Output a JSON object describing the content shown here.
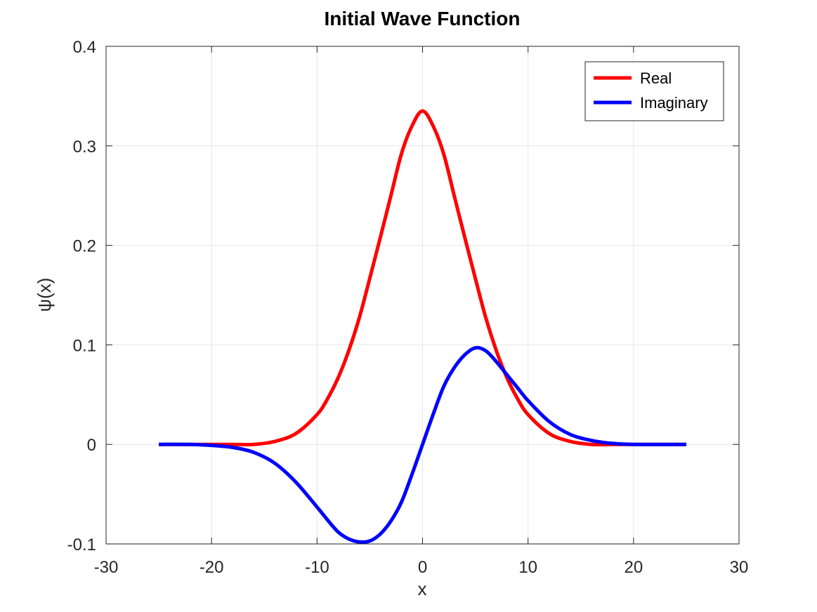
{
  "chart_data": {
    "type": "line",
    "title": "Initial Wave Function",
    "xlabel": "x",
    "ylabel": "ψ(x)",
    "xlim": [
      -30,
      30
    ],
    "ylim": [
      -0.1,
      0.4
    ],
    "xticks": [
      -30,
      -20,
      -10,
      0,
      10,
      20,
      30
    ],
    "xtick_labels": [
      "-30",
      "-20",
      "-10",
      "0",
      "10",
      "20",
      "30"
    ],
    "yticks": [
      -0.1,
      0,
      0.1,
      0.2,
      0.3,
      0.4
    ],
    "ytick_labels": [
      "-0.1",
      "0",
      "0.1",
      "0.2",
      "0.3",
      "0.4"
    ],
    "grid": true,
    "legend_position": "top-right",
    "x": [
      -25,
      -22,
      -20,
      -18,
      -16,
      -14,
      -12,
      -10,
      -9,
      -8,
      -7,
      -6,
      -5,
      -4,
      -3,
      -2,
      -1,
      0,
      1,
      2,
      3,
      4,
      5,
      6,
      7,
      8,
      9,
      10,
      12,
      14,
      16,
      18,
      20,
      22,
      25
    ],
    "series": [
      {
        "name": "Real",
        "color": "#ff0000",
        "values": [
          0.0,
          0.0,
          0.0,
          0.0,
          0.0,
          0.003,
          0.011,
          0.03,
          0.046,
          0.067,
          0.094,
          0.127,
          0.167,
          0.208,
          0.25,
          0.292,
          0.32,
          0.335,
          0.32,
          0.292,
          0.25,
          0.208,
          0.167,
          0.127,
          0.094,
          0.067,
          0.046,
          0.03,
          0.011,
          0.003,
          0.0,
          0.0,
          0.0,
          0.0,
          0.0
        ]
      },
      {
        "name": "Imaginary",
        "color": "#0000ff",
        "values": [
          0.0,
          0.0,
          -0.001,
          -0.003,
          -0.008,
          -0.019,
          -0.038,
          -0.063,
          -0.076,
          -0.088,
          -0.095,
          -0.098,
          -0.097,
          -0.09,
          -0.077,
          -0.058,
          -0.03,
          0.0,
          0.03,
          0.058,
          0.077,
          0.09,
          0.097,
          0.094,
          0.083,
          0.07,
          0.057,
          0.044,
          0.023,
          0.01,
          0.004,
          0.001,
          0.0,
          0.0,
          0.0
        ]
      }
    ]
  }
}
